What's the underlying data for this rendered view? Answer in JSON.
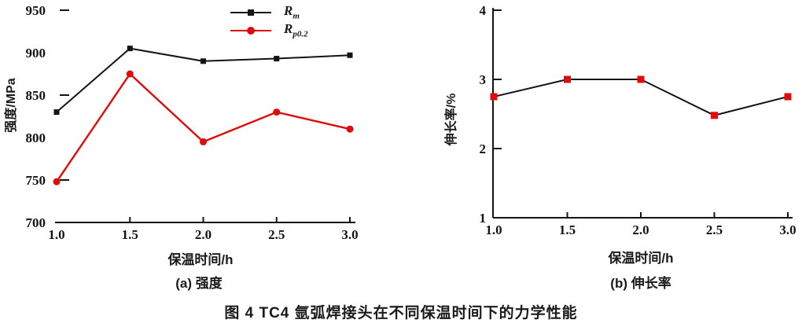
{
  "figure": {
    "caption": "图 4  TC4 氩弧焊接头在不同保温时间下的力学性能"
  },
  "colors": {
    "axis": "#141414",
    "series_black": "#141414",
    "series_red": "#e00b0b"
  },
  "chart_data": [
    {
      "type": "line",
      "id": "strength",
      "x": [
        1.0,
        1.5,
        2.0,
        2.5,
        3.0
      ],
      "xticks": [
        "1.0",
        "1.5",
        "2.0",
        "2.5",
        "3.0"
      ],
      "yticks": [
        "950",
        "900",
        "850",
        "800",
        "750",
        "700"
      ],
      "ylim": [
        700,
        950
      ],
      "xlabel": "保温时间/h",
      "ylabel": "强度/MPa",
      "caption": "(a) 强度",
      "legend_position": "top-center",
      "series": [
        {
          "name": "Rm",
          "label_main": "R",
          "label_sub": "m",
          "color": "#141414",
          "marker": "square",
          "marker_color": "#141414",
          "marker_size": 7,
          "line_width": 2,
          "values": [
            830,
            905,
            890,
            893,
            897
          ]
        },
        {
          "name": "Rp0.2",
          "label_main": "R",
          "label_sub": "p0.2",
          "color": "#e00b0b",
          "marker": "circle",
          "marker_color": "#e00b0b",
          "marker_size": 9,
          "line_width": 2.4,
          "values": [
            748,
            875,
            795,
            830,
            810
          ]
        }
      ]
    },
    {
      "type": "line",
      "id": "elongation",
      "x": [
        1.0,
        1.5,
        2.0,
        2.5,
        3.0
      ],
      "xticks": [
        "1.0",
        "1.5",
        "2.0",
        "2.5",
        "3.0"
      ],
      "yticks": [
        "4",
        "3",
        "2",
        "1"
      ],
      "ylim": [
        1,
        4
      ],
      "xlabel": "保温时间/h",
      "ylabel": "伸长率/%",
      "caption": "(b) 伸长率",
      "legend_position": "none",
      "series": [
        {
          "name": "elongation",
          "color": "#141414",
          "marker": "square",
          "marker_color": "#e00b0b",
          "marker_size": 9,
          "line_width": 2,
          "values": [
            2.75,
            3.0,
            3.0,
            2.48,
            2.75
          ]
        }
      ]
    }
  ]
}
